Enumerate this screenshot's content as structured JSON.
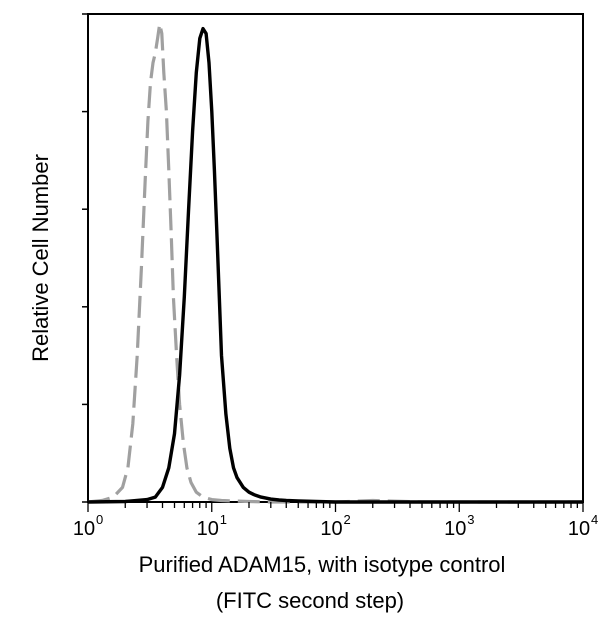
{
  "chart_data": {
    "type": "line",
    "xscale": "log",
    "xlim": [
      1,
      10000
    ],
    "ylim": [
      0,
      100
    ],
    "xlabel_line1": "Purified ADAM15, with isotype control",
    "xlabel_line2": "(FITC second step)",
    "ylabel": "Relative Cell Number",
    "x_ticks": [
      {
        "base": "10",
        "exp": "0",
        "value": 1
      },
      {
        "base": "10",
        "exp": "1",
        "value": 10
      },
      {
        "base": "10",
        "exp": "2",
        "value": 100
      },
      {
        "base": "10",
        "exp": "3",
        "value": 1000
      },
      {
        "base": "10",
        "exp": "4",
        "value": 10000
      }
    ],
    "y_tick_values": [
      0,
      20,
      40,
      60,
      80,
      100
    ],
    "grid": false,
    "legend": "none",
    "series": [
      {
        "color": "#a0a0a0",
        "dash": true,
        "x": [
          1,
          1.3,
          1.6,
          1.9,
          2.1,
          2.3,
          2.5,
          2.7,
          2.9,
          3.05,
          3.2,
          3.35,
          3.5,
          3.65,
          3.8,
          3.95,
          4.1,
          4.3,
          4.5,
          4.7,
          4.9,
          5.2,
          5.5,
          5.9,
          6.3,
          6.8,
          7.5,
          8.5,
          10,
          12,
          15,
          20,
          30,
          50,
          100,
          200,
          500,
          1000,
          3000,
          10000
        ],
        "y": [
          0,
          0.3,
          1,
          3,
          7,
          16,
          30,
          48,
          66,
          78,
          86,
          90,
          92,
          95,
          98,
          96,
          88,
          80,
          68,
          55,
          42,
          30,
          20,
          12,
          7,
          4,
          2,
          1,
          0.5,
          0.3,
          0.2,
          0.1,
          0,
          0,
          0,
          0.3,
          0,
          0,
          0,
          0
        ]
      },
      {
        "color": "#000000",
        "dash": false,
        "x": [
          1,
          2,
          3,
          3.5,
          4,
          4.5,
          5,
          5.5,
          6,
          6.5,
          7,
          7.5,
          8,
          8.5,
          9,
          9.5,
          10,
          10.5,
          11,
          11.5,
          12,
          13,
          14,
          15,
          16,
          18,
          20,
          22,
          25,
          30,
          35,
          40,
          50,
          70,
          100,
          200,
          500,
          1000,
          3000,
          10000
        ],
        "y": [
          0,
          0.1,
          0.5,
          1,
          3,
          7,
          14,
          26,
          42,
          60,
          76,
          88,
          95,
          97,
          96,
          90,
          80,
          68,
          55,
          42,
          30,
          18,
          11,
          7,
          5,
          3,
          2,
          1.5,
          1,
          0.6,
          0.4,
          0.3,
          0.2,
          0.1,
          0,
          0,
          0,
          0,
          0,
          0
        ]
      }
    ]
  }
}
